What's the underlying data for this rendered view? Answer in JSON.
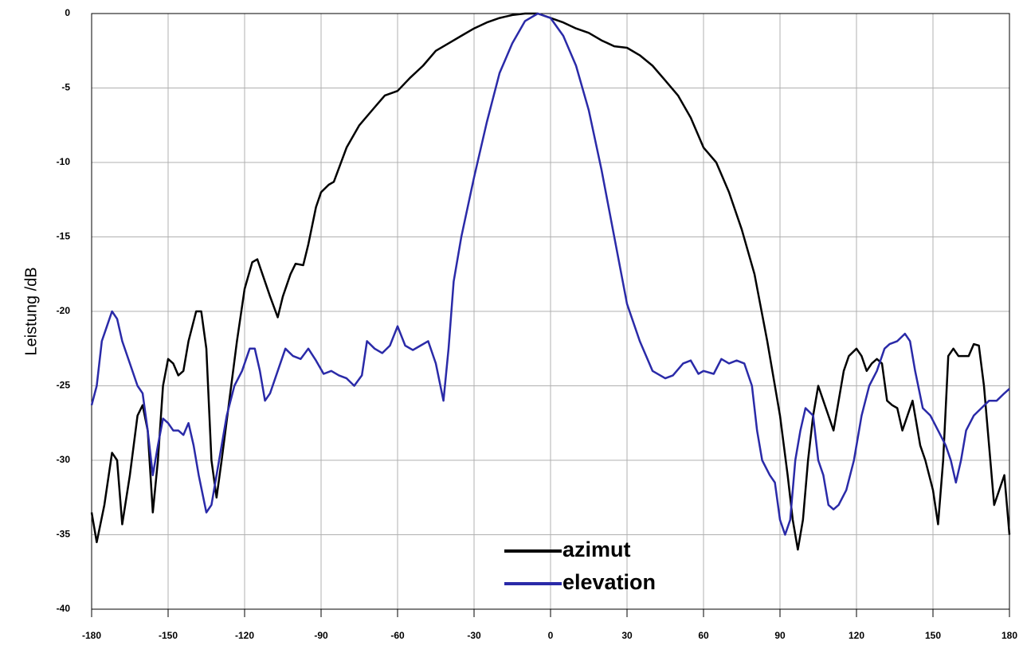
{
  "chart_data": {
    "type": "line",
    "y_label": "Leistung /dB",
    "xlim": [
      -180,
      180
    ],
    "ylim": [
      -40,
      0
    ],
    "xticks": [
      -180,
      -150,
      -120,
      -90,
      -60,
      -30,
      0,
      30,
      60,
      90,
      120,
      150,
      180
    ],
    "yticks": [
      -40,
      -35,
      -30,
      -25,
      -20,
      -15,
      -10,
      -5,
      0
    ],
    "grid": true,
    "legend": "lower center",
    "series": [
      {
        "name": "azimut",
        "color": "#000000",
        "x": [
          -180,
          -178,
          -175,
          -172,
          -170,
          -168,
          -165,
          -162,
          -160,
          -158,
          -156,
          -154,
          -152,
          -150,
          -148,
          -146,
          -144,
          -142,
          -139,
          -137,
          -135,
          -133,
          -131,
          -129,
          -126,
          -123,
          -120,
          -117,
          -115,
          -113,
          -110,
          -107,
          -105,
          -102,
          -100,
          -97,
          -95,
          -92,
          -90,
          -87,
          -85,
          -80,
          -75,
          -70,
          -65,
          -60,
          -55,
          -50,
          -45,
          -40,
          -35,
          -30,
          -25,
          -20,
          -15,
          -10,
          -5,
          0,
          5,
          10,
          15,
          20,
          25,
          30,
          35,
          40,
          45,
          50,
          55,
          60,
          65,
          70,
          75,
          80,
          85,
          90,
          93,
          95,
          97,
          99,
          101,
          103,
          105,
          107,
          109,
          111,
          113,
          115,
          117,
          120,
          122,
          124,
          126,
          128,
          130,
          132,
          134,
          136,
          138,
          140,
          142,
          145,
          147,
          150,
          152,
          154,
          156,
          158,
          160,
          162,
          164,
          166,
          168,
          170,
          172,
          174,
          176,
          178,
          180
        ],
        "values": [
          -33.5,
          -35.5,
          -33,
          -29.5,
          -30,
          -34.3,
          -31,
          -27,
          -26.3,
          -28,
          -33.5,
          -30,
          -25,
          -23.2,
          -23.5,
          -24.3,
          -24,
          -22,
          -20,
          -20,
          -22.5,
          -30,
          -32.5,
          -30,
          -26,
          -22,
          -18.5,
          -16.7,
          -16.5,
          -17.5,
          -19,
          -20.4,
          -19,
          -17.5,
          -16.8,
          -16.9,
          -15.5,
          -13,
          -12,
          -11.5,
          -11.3,
          -9,
          -7.5,
          -6.5,
          -5.5,
          -5.2,
          -4.3,
          -3.5,
          -2.5,
          -2,
          -1.5,
          -1,
          -0.6,
          -0.3,
          -0.1,
          0,
          0,
          -0.3,
          -0.6,
          -1,
          -1.3,
          -1.8,
          -2.2,
          -2.3,
          -2.8,
          -3.5,
          -4.5,
          -5.5,
          -7,
          -9,
          -10,
          -12,
          -14.5,
          -17.5,
          -22,
          -27,
          -31,
          -34,
          -36,
          -34,
          -30,
          -27,
          -25,
          -26,
          -27,
          -28,
          -26,
          -24,
          -23,
          -22.5,
          -23,
          -24,
          -23.5,
          -23.2,
          -23.5,
          -26,
          -26.3,
          -26.5,
          -28,
          -27,
          -26,
          -29,
          -30,
          -32,
          -34.3,
          -30,
          -23,
          -22.5,
          -23,
          -23,
          -23,
          -22.2,
          -22.3,
          -25,
          -29,
          -33,
          -32,
          -31,
          -35
        ]
      },
      {
        "name": "elevation",
        "color": "#2a2aa8",
        "x": [
          -180,
          -178,
          -176,
          -174,
          -172,
          -170,
          -168,
          -165,
          -162,
          -160,
          -158,
          -156,
          -154,
          -152,
          -150,
          -148,
          -146,
          -144,
          -142,
          -140,
          -138,
          -135,
          -133,
          -130,
          -127,
          -124,
          -121,
          -118,
          -116,
          -114,
          -112,
          -110,
          -107,
          -104,
          -101,
          -98,
          -95,
          -92,
          -89,
          -86,
          -83,
          -80,
          -77,
          -74,
          -72,
          -69,
          -66,
          -63,
          -60,
          -57,
          -54,
          -51,
          -48,
          -45,
          -42,
          -40,
          -38,
          -35,
          -30,
          -25,
          -20,
          -15,
          -10,
          -5,
          0,
          5,
          10,
          15,
          20,
          25,
          30,
          35,
          40,
          45,
          48,
          52,
          55,
          58,
          60,
          64,
          67,
          70,
          73,
          76,
          79,
          81,
          83,
          86,
          88,
          90,
          92,
          94,
          96,
          98,
          100,
          103,
          105,
          107,
          109,
          111,
          113,
          116,
          119,
          122,
          125,
          128,
          131,
          133,
          136,
          139,
          141,
          143,
          146,
          149,
          152,
          155,
          157,
          159,
          161,
          163,
          166,
          169,
          172,
          175,
          178,
          180
        ],
        "values": [
          -26.3,
          -25,
          -22,
          -21,
          -20,
          -20.5,
          -22,
          -23.5,
          -25,
          -25.5,
          -28,
          -31,
          -29,
          -27.2,
          -27.5,
          -28,
          -28,
          -28.3,
          -27.5,
          -29,
          -31,
          -33.5,
          -33,
          -30,
          -27,
          -25,
          -24,
          -22.5,
          -22.5,
          -24,
          -26,
          -25.5,
          -24,
          -22.5,
          -23,
          -23.2,
          -22.5,
          -23.3,
          -24.2,
          -24,
          -24.3,
          -24.5,
          -25,
          -24.3,
          -22,
          -22.5,
          -22.8,
          -22.3,
          -21,
          -22.3,
          -22.6,
          -22.3,
          -22,
          -23.5,
          -26,
          -22.5,
          -18,
          -15,
          -11,
          -7.3,
          -4,
          -2,
          -0.5,
          0,
          -0.3,
          -1.5,
          -3.5,
          -6.5,
          -10.5,
          -15,
          -19.5,
          -22,
          -24,
          -24.5,
          -24.3,
          -23.5,
          -23.3,
          -24.2,
          -24,
          -24.2,
          -23.2,
          -23.5,
          -23.3,
          -23.5,
          -25,
          -28,
          -30,
          -31,
          -31.5,
          -34,
          -35,
          -34,
          -30,
          -28,
          -26.5,
          -27,
          -30,
          -31,
          -33,
          -33.3,
          -33,
          -32,
          -30,
          -27,
          -25,
          -24,
          -22.5,
          -22.2,
          -22,
          -21.5,
          -22,
          -24,
          -26.5,
          -27,
          -28,
          -29,
          -30,
          -31.5,
          -30,
          -28,
          -27,
          -26.5,
          -26,
          -26,
          -25.5,
          -25.2
        ]
      }
    ]
  }
}
